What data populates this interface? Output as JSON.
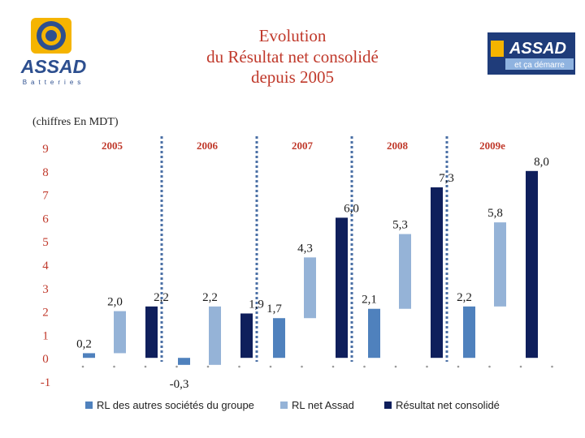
{
  "title_lines": [
    "Evolution",
    "du Résultat net consolidé",
    "depuis 2005"
  ],
  "units": "(chiffres En MDT)",
  "logo_left": {
    "name": "ASSAD",
    "sub": "Batteries"
  },
  "logo_right": {
    "brand": "ASSAD",
    "slogan": "et ça démarre"
  },
  "colors": {
    "series1": "#4f81bd",
    "series2": "#95b3d7",
    "series3": "#0f1f5c",
    "title": "#c0392b",
    "axis": "#c0392b",
    "divider": "#4a6fa5"
  },
  "chart_data": {
    "type": "bar",
    "title": "Evolution du Résultat net consolidé depuis 2005",
    "ylabel": "",
    "xlabel": "",
    "units": "MDT",
    "ylim": [
      -1,
      9
    ],
    "yticks": [
      -1,
      0,
      1,
      2,
      3,
      4,
      5,
      6,
      7,
      8,
      9
    ],
    "ytick_labels": [
      "-1",
      "0",
      "1",
      "2",
      "3",
      "4",
      "5",
      "6",
      "7",
      "8",
      "9"
    ],
    "grid": false,
    "legend_position": "bottom",
    "categories": [
      "2005",
      "2006",
      "2007",
      "2008",
      "2009e"
    ],
    "series": [
      {
        "name": "RL des autres sociétés du groupe",
        "style": "base",
        "values": [
          0.2,
          -0.3,
          1.7,
          2.1,
          2.2
        ],
        "labels": [
          "0,2",
          "-0,3",
          "1,7",
          "2,1",
          "2,2"
        ]
      },
      {
        "name": "RL net Assad",
        "style": "floating",
        "values": [
          2.0,
          2.2,
          4.3,
          5.3,
          5.8
        ],
        "labels": [
          "2,0",
          "2,2",
          "4,3",
          "5,3",
          "5,8"
        ]
      },
      {
        "name": "Résultat net consolidé",
        "style": "total",
        "values": [
          2.2,
          1.9,
          6.0,
          7.3,
          8.0
        ],
        "labels": [
          "2,2",
          "1,9",
          "6,0",
          "7,3",
          "8,0"
        ]
      }
    ]
  }
}
